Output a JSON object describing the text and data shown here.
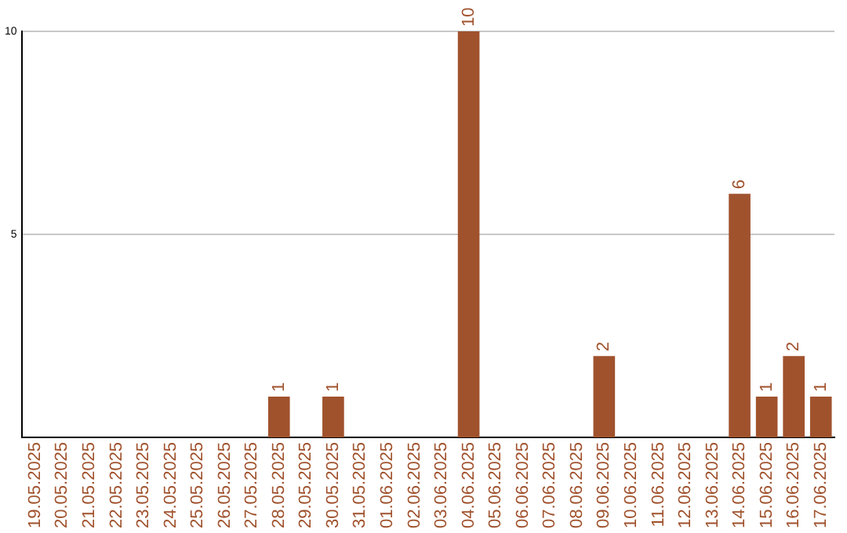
{
  "chart_data": {
    "type": "bar",
    "categories": [
      "19.05.2025",
      "20.05.2025",
      "21.05.2025",
      "22.05.2025",
      "23.05.2025",
      "24.05.2025",
      "25.05.2025",
      "26.05.2025",
      "27.05.2025",
      "28.05.2025",
      "29.05.2025",
      "30.05.2025",
      "31.05.2025",
      "01.06.2025",
      "02.06.2025",
      "03.06.2025",
      "04.06.2025",
      "05.06.2025",
      "06.06.2025",
      "07.06.2025",
      "08.06.2025",
      "09.06.2025",
      "10.06.2025",
      "11.06.2025",
      "12.06.2025",
      "13.06.2025",
      "14.06.2025",
      "15.06.2025",
      "16.06.2025",
      "17.06.2025"
    ],
    "values": [
      0,
      0,
      0,
      0,
      0,
      0,
      0,
      0,
      0,
      1,
      0,
      1,
      0,
      0,
      0,
      0,
      10,
      0,
      0,
      0,
      0,
      2,
      0,
      0,
      0,
      0,
      6,
      1,
      2,
      1
    ],
    "value_labels": [
      null,
      null,
      null,
      null,
      null,
      null,
      null,
      null,
      null,
      "1",
      null,
      "1",
      null,
      null,
      null,
      null,
      "10",
      null,
      null,
      null,
      null,
      "2",
      null,
      null,
      null,
      null,
      "6",
      "1",
      "2",
      "1"
    ],
    "color": "#a0522d",
    "ylim": [
      0,
      10
    ],
    "yticks": [
      5,
      10
    ],
    "grid": "y",
    "legend": false
  }
}
